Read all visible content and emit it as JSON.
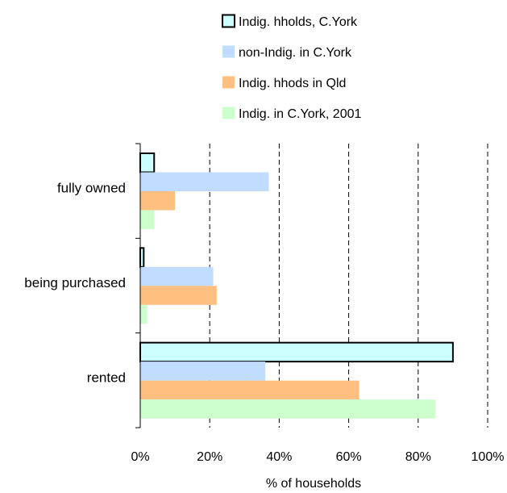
{
  "chart_data": {
    "type": "bar",
    "orientation": "horizontal",
    "categories": [
      "fully owned",
      "being purchased",
      "rented"
    ],
    "series": [
      {
        "name": "Indig. hholds, C.York",
        "values": [
          4,
          1,
          90
        ],
        "color": "#ccffff",
        "outline": "#000000"
      },
      {
        "name": "non-Indig. in C.York",
        "values": [
          37,
          21,
          36
        ],
        "color": "#c0dcff"
      },
      {
        "name": "Indig. hhods in Qld",
        "values": [
          10,
          22,
          63
        ],
        "color": "#ffbf80"
      },
      {
        "name": "Indig. in C.York, 2001",
        "values": [
          4,
          2,
          85
        ],
        "color": "#ccffcc"
      }
    ],
    "xlabel": "% of households",
    "ylabel": "",
    "xlim": [
      0,
      100
    ],
    "xticks": [
      0,
      20,
      40,
      60,
      80,
      100
    ],
    "xtick_labels": [
      "0%",
      "20%",
      "40%",
      "60%",
      "80%",
      "100%"
    ],
    "grid": "vertical dashed",
    "legend": "top"
  }
}
